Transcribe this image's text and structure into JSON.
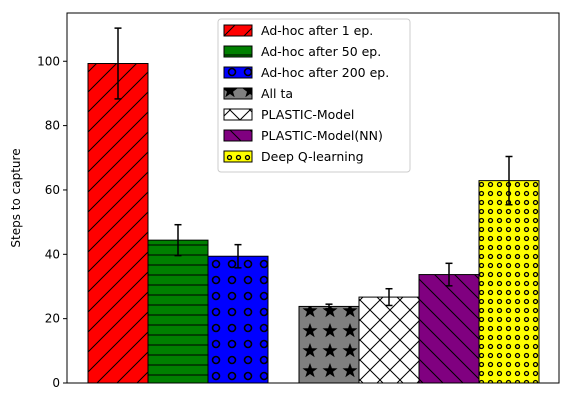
{
  "chart_data": {
    "type": "bar",
    "title": "",
    "xlabel": "",
    "ylabel": "Steps to capture",
    "ylim": [
      0,
      115
    ],
    "yticks": [
      0,
      20,
      40,
      60,
      80,
      100
    ],
    "grid": false,
    "legend_position": "top-center",
    "series": [
      {
        "name": "Ad-hoc after 1 ep.",
        "value": 99.3,
        "err": 11.0,
        "group": 0,
        "color": "#ff0000",
        "hatch": "diag-right"
      },
      {
        "name": "Ad-hoc after 50 ep.",
        "value": 44.4,
        "err": 4.8,
        "group": 0,
        "color": "#008000",
        "hatch": "horizontal"
      },
      {
        "name": "Ad-hoc after 200 ep.",
        "value": 39.4,
        "err": 3.6,
        "group": 0,
        "color": "#0000ff",
        "hatch": "circles"
      },
      {
        "name": "All ta",
        "value": 23.8,
        "err": 0.7,
        "group": 1,
        "color": "#808080",
        "hatch": "stars"
      },
      {
        "name": "PLASTIC-Model",
        "value": 26.7,
        "err": 2.6,
        "group": 1,
        "color": "#ffffff",
        "hatch": "cross"
      },
      {
        "name": "PLASTIC-Model(NN)",
        "value": 33.7,
        "err": 3.5,
        "group": 1,
        "color": "#800080",
        "hatch": "diag-left"
      },
      {
        "name": "Deep Q-learning",
        "value": 62.9,
        "err": 7.5,
        "group": 1,
        "color": "#ffff00",
        "hatch": "dots"
      }
    ]
  }
}
